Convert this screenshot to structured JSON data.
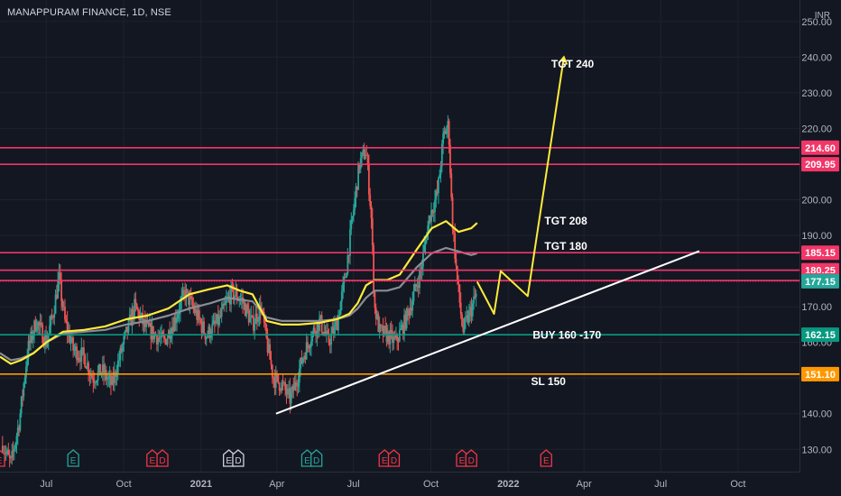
{
  "title": "MANAPPURAM FINANCE, 1D, NSE",
  "currency_label": "INR",
  "chart_data": {
    "type": "candlestick",
    "title": "MANAPPURAM FINANCE, 1D, NSE",
    "y_axis": {
      "ticks": [
        "130.00",
        "140.00",
        "150.00",
        "160.00",
        "170.00",
        "180.00",
        "190.00",
        "200.00",
        "210.00",
        "220.00",
        "230.00",
        "240.00",
        "250.00"
      ],
      "range": [
        124,
        254
      ]
    },
    "x_axis": {
      "labels": [
        "Jul",
        "Oct",
        "2021",
        "Apr",
        "Jul",
        "Oct",
        "2022",
        "Apr",
        "Jul",
        "Oct"
      ],
      "label_days": [
        0,
        92,
        184,
        274,
        365,
        457,
        549,
        639,
        730,
        822
      ],
      "range_days": [
        -55,
        895
      ]
    },
    "candles_range_days": [
      -52,
      512
    ],
    "price_path": [
      [
        -52,
        131
      ],
      [
        -42,
        126
      ],
      [
        -32,
        138
      ],
      [
        -22,
        158
      ],
      [
        -12,
        166
      ],
      [
        0,
        160
      ],
      [
        8,
        168
      ],
      [
        15,
        178
      ],
      [
        22,
        166
      ],
      [
        32,
        158
      ],
      [
        45,
        156
      ],
      [
        55,
        150
      ],
      [
        66,
        152
      ],
      [
        78,
        148
      ],
      [
        92,
        160
      ],
      [
        105,
        170
      ],
      [
        118,
        164
      ],
      [
        130,
        162
      ],
      [
        140,
        160
      ],
      [
        152,
        166
      ],
      [
        165,
        174
      ],
      [
        178,
        168
      ],
      [
        190,
        162
      ],
      [
        205,
        166
      ],
      [
        220,
        174
      ],
      [
        232,
        172
      ],
      [
        245,
        165
      ],
      [
        255,
        170
      ],
      [
        262,
        160
      ],
      [
        270,
        150
      ],
      [
        280,
        148
      ],
      [
        290,
        144
      ],
      [
        298,
        150
      ],
      [
        305,
        156
      ],
      [
        315,
        162
      ],
      [
        325,
        166
      ],
      [
        335,
        160
      ],
      [
        345,
        165
      ],
      [
        355,
        178
      ],
      [
        365,
        197
      ],
      [
        372,
        210
      ],
      [
        380,
        214
      ],
      [
        386,
        196
      ],
      [
        390,
        170
      ],
      [
        396,
        163
      ],
      [
        405,
        162
      ],
      [
        415,
        160
      ],
      [
        425,
        165
      ],
      [
        435,
        172
      ],
      [
        445,
        180
      ],
      [
        455,
        195
      ],
      [
        465,
        202
      ],
      [
        472,
        218
      ],
      [
        478,
        221
      ],
      [
        482,
        196
      ],
      [
        488,
        178
      ],
      [
        495,
        163
      ],
      [
        503,
        168
      ],
      [
        512,
        174
      ]
    ],
    "ema_yellow": [
      [
        -55,
        156
      ],
      [
        -42,
        154
      ],
      [
        -30,
        155
      ],
      [
        -15,
        157
      ],
      [
        0,
        160
      ],
      [
        20,
        163
      ],
      [
        45,
        163.5
      ],
      [
        70,
        164.5
      ],
      [
        95,
        166.5
      ],
      [
        120,
        167.5
      ],
      [
        145,
        169.5
      ],
      [
        170,
        173.5
      ],
      [
        195,
        175
      ],
      [
        215,
        176
      ],
      [
        230,
        174.5
      ],
      [
        245,
        173.5
      ],
      [
        262,
        166
      ],
      [
        280,
        165
      ],
      [
        300,
        165
      ],
      [
        325,
        165.5
      ],
      [
        345,
        166.5
      ],
      [
        360,
        168
      ],
      [
        370,
        171
      ],
      [
        380,
        176
      ],
      [
        390,
        177.5
      ],
      [
        405,
        177.5
      ],
      [
        420,
        179
      ],
      [
        440,
        186
      ],
      [
        458,
        192
      ],
      [
        475,
        194
      ],
      [
        490,
        191
      ],
      [
        505,
        192
      ],
      [
        512,
        193.5
      ]
    ],
    "ema_gray": [
      [
        -55,
        157
      ],
      [
        -42,
        155
      ],
      [
        -30,
        155.5
      ],
      [
        -15,
        157
      ],
      [
        0,
        160
      ],
      [
        20,
        162.5
      ],
      [
        45,
        163
      ],
      [
        70,
        163.5
      ],
      [
        95,
        165
      ],
      [
        120,
        166
      ],
      [
        145,
        167.5
      ],
      [
        170,
        169.5
      ],
      [
        195,
        171
      ],
      [
        215,
        172.5
      ],
      [
        230,
        172
      ],
      [
        245,
        171.5
      ],
      [
        262,
        167
      ],
      [
        280,
        166
      ],
      [
        300,
        166
      ],
      [
        325,
        166
      ],
      [
        345,
        166.5
      ],
      [
        360,
        167.5
      ],
      [
        370,
        169.5
      ],
      [
        380,
        172.5
      ],
      [
        390,
        174.5
      ],
      [
        405,
        174.5
      ],
      [
        420,
        175.5
      ],
      [
        440,
        181
      ],
      [
        458,
        185
      ],
      [
        475,
        186.5
      ],
      [
        490,
        185.5
      ],
      [
        505,
        184.5
      ],
      [
        512,
        185
      ]
    ],
    "horizontal_levels": [
      {
        "value": 214.6,
        "label": "214.60",
        "color": "#f23668"
      },
      {
        "value": 209.95,
        "label": "209.95",
        "color": "#f23668"
      },
      {
        "value": 185.15,
        "label": "185.15",
        "color": "#f23668"
      },
      {
        "value": 180.25,
        "label": "180.25",
        "color": "#f23668"
      },
      {
        "value": 177.35,
        "label": "177.35",
        "color": "#f23668"
      },
      {
        "value": 177.15,
        "label": "177.15",
        "color": "#26a69a"
      },
      {
        "value": 162.15,
        "label": "162.15",
        "color": "#089981"
      },
      {
        "value": 151.1,
        "label": "151.10",
        "color": "#ff9800"
      }
    ],
    "annotations": [
      {
        "text": "TGT 240",
        "day": 600,
        "value": 237
      },
      {
        "text": "TGT 208",
        "day": 592,
        "value": 193
      },
      {
        "text": "TGT 180",
        "day": 592,
        "value": 186
      },
      {
        "text": "BUY 160 -170",
        "day": 578,
        "value": 161
      },
      {
        "text": "SL 150",
        "day": 576,
        "value": 148
      }
    ],
    "trendline": {
      "from": [
        273,
        140
      ],
      "to": [
        776,
        185.6
      ],
      "color": "#ffffff"
    },
    "projection": {
      "points": [
        [
          512,
          177
        ],
        [
          532,
          168
        ],
        [
          540,
          180
        ],
        [
          572,
          173
        ],
        [
          615,
          240
        ]
      ],
      "color": "#ffeb3b"
    },
    "event_markers": [
      {
        "label": "E",
        "day": -56,
        "color": "#f23645"
      },
      {
        "label": "E",
        "day": 32,
        "color": "#26a69a"
      },
      {
        "label": "E",
        "day": 126,
        "color": "#f23645"
      },
      {
        "label": "D",
        "day": 138,
        "color": "#f23645"
      },
      {
        "label": "E",
        "day": 217,
        "color": "#d1d4dc"
      },
      {
        "label": "D",
        "day": 228,
        "color": "#d1d4dc"
      },
      {
        "label": "E",
        "day": 310,
        "color": "#26a69a"
      },
      {
        "label": "D",
        "day": 321,
        "color": "#26a69a"
      },
      {
        "label": "E",
        "day": 402,
        "color": "#f23645"
      },
      {
        "label": "D",
        "day": 413,
        "color": "#f23645"
      },
      {
        "label": "E",
        "day": 494,
        "color": "#f23645"
      },
      {
        "label": "D",
        "day": 505,
        "color": "#f23645"
      },
      {
        "label": "E",
        "day": 594,
        "color": "#f23645"
      }
    ]
  }
}
